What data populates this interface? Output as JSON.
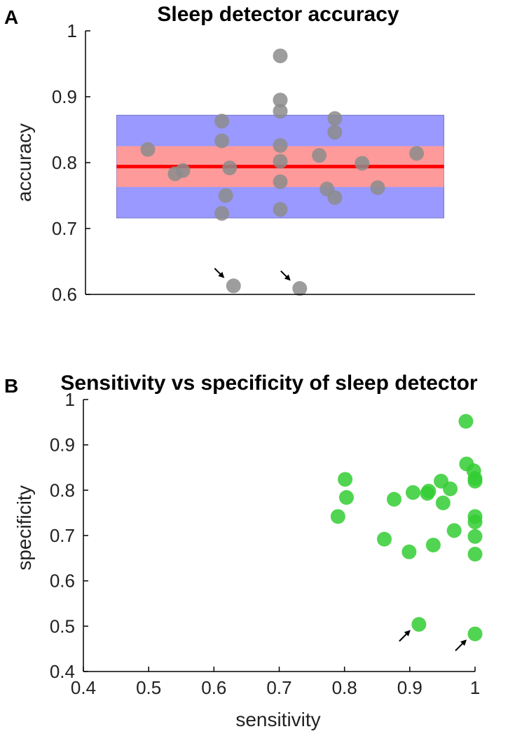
{
  "colors": {
    "axis": "#000000",
    "gray_point": "#8c8c8c",
    "green_point": "#33cc33",
    "blue_band": "#9999ff",
    "red_band": "#ff9a9a",
    "mean_line": "#ff0000"
  },
  "chart_data": [
    {
      "panel_label": "A",
      "type": "scatter",
      "title": "Sleep detector accuracy",
      "xlabel": "",
      "ylabel": "accuracy",
      "ylim": [
        0.6,
        1.0
      ],
      "yticks": [
        "0.6",
        "0.7",
        "0.8",
        "0.9",
        "1"
      ],
      "xlim": [
        0,
        1
      ],
      "mean": 0.794,
      "inner_band": [
        0.763,
        0.825
      ],
      "outer_band": [
        0.716,
        0.872
      ],
      "band_x": [
        0.08,
        0.92
      ],
      "points": [
        {
          "x": 0.16,
          "y": 0.82
        },
        {
          "x": 0.23,
          "y": 0.783
        },
        {
          "x": 0.25,
          "y": 0.788
        },
        {
          "x": 0.35,
          "y": 0.863
        },
        {
          "x": 0.35,
          "y": 0.833
        },
        {
          "x": 0.35,
          "y": 0.723
        },
        {
          "x": 0.36,
          "y": 0.75
        },
        {
          "x": 0.37,
          "y": 0.792
        },
        {
          "x": 0.38,
          "y": 0.613,
          "flagged": true
        },
        {
          "x": 0.5,
          "y": 0.962
        },
        {
          "x": 0.5,
          "y": 0.895
        },
        {
          "x": 0.5,
          "y": 0.878
        },
        {
          "x": 0.5,
          "y": 0.826
        },
        {
          "x": 0.5,
          "y": 0.802
        },
        {
          "x": 0.5,
          "y": 0.771
        },
        {
          "x": 0.5,
          "y": 0.729
        },
        {
          "x": 0.55,
          "y": 0.609,
          "flagged": true
        },
        {
          "x": 0.6,
          "y": 0.811
        },
        {
          "x": 0.62,
          "y": 0.76
        },
        {
          "x": 0.64,
          "y": 0.867
        },
        {
          "x": 0.64,
          "y": 0.846
        },
        {
          "x": 0.64,
          "y": 0.747
        },
        {
          "x": 0.71,
          "y": 0.799
        },
        {
          "x": 0.75,
          "y": 0.762
        },
        {
          "x": 0.85,
          "y": 0.814
        }
      ]
    },
    {
      "panel_label": "B",
      "type": "scatter",
      "title": "Sensitivity vs specificity of sleep detector",
      "xlabel": "sensitivity",
      "ylabel": "specificity",
      "xlim": [
        0.4,
        1.0
      ],
      "ylim": [
        0.4,
        1.0
      ],
      "xticks": [
        "0.4",
        "0.5",
        "0.6",
        "0.7",
        "0.8",
        "0.9",
        "1"
      ],
      "yticks": [
        "0.4",
        "0.5",
        "0.6",
        "0.7",
        "0.8",
        "0.9",
        "1"
      ],
      "points": [
        {
          "x": 0.79,
          "y": 0.742
        },
        {
          "x": 0.801,
          "y": 0.824
        },
        {
          "x": 0.803,
          "y": 0.784
        },
        {
          "x": 0.861,
          "y": 0.692
        },
        {
          "x": 0.876,
          "y": 0.78
        },
        {
          "x": 0.899,
          "y": 0.664
        },
        {
          "x": 0.905,
          "y": 0.795
        },
        {
          "x": 0.914,
          "y": 0.504,
          "flagged": true
        },
        {
          "x": 0.927,
          "y": 0.793
        },
        {
          "x": 0.929,
          "y": 0.798
        },
        {
          "x": 0.936,
          "y": 0.679
        },
        {
          "x": 0.948,
          "y": 0.82
        },
        {
          "x": 0.951,
          "y": 0.772
        },
        {
          "x": 0.962,
          "y": 0.803
        },
        {
          "x": 0.968,
          "y": 0.711
        },
        {
          "x": 0.986,
          "y": 0.952
        },
        {
          "x": 0.987,
          "y": 0.858
        },
        {
          "x": 0.998,
          "y": 0.843
        },
        {
          "x": 1.0,
          "y": 0.826
        },
        {
          "x": 1.0,
          "y": 0.82
        },
        {
          "x": 1.0,
          "y": 0.742
        },
        {
          "x": 1.0,
          "y": 0.73
        },
        {
          "x": 1.0,
          "y": 0.698
        },
        {
          "x": 1.0,
          "y": 0.659
        },
        {
          "x": 1.0,
          "y": 0.483,
          "flagged": true
        }
      ]
    }
  ]
}
